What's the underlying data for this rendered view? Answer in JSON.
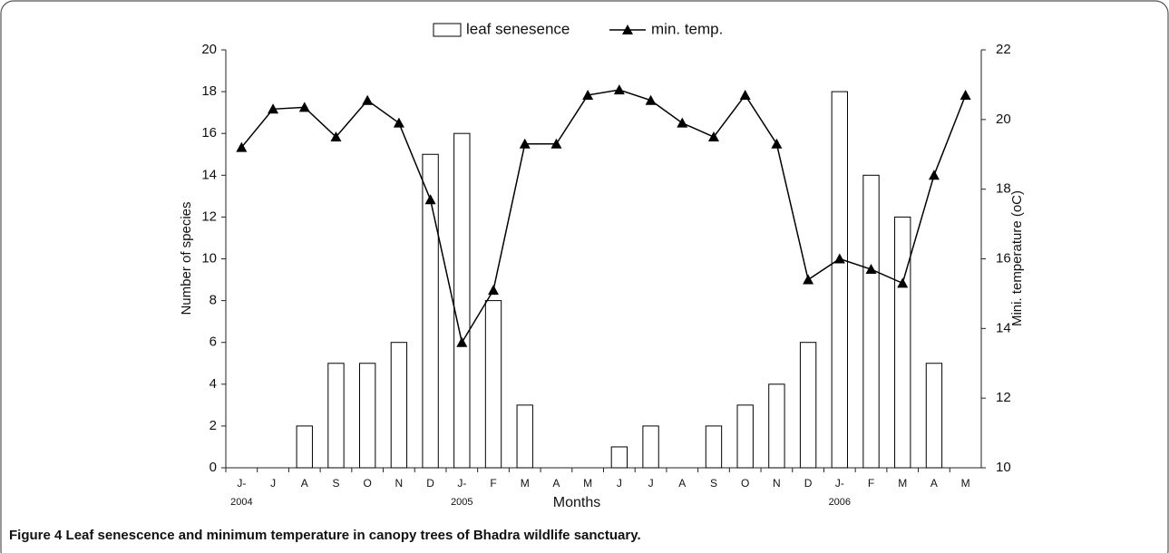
{
  "chart_data": {
    "type": "bar_line",
    "legend": "top",
    "xlabel": "Months",
    "ylabel": "Number of species",
    "y2label": "Mini. temperature (oC)",
    "categories": [
      "J-",
      "J",
      "A",
      "S",
      "O",
      "N",
      "D",
      "J-",
      "F",
      "M",
      "A",
      "M",
      "J",
      "J",
      "A",
      "S",
      "O",
      "N",
      "D",
      "J-",
      "F",
      "M",
      "A",
      "M"
    ],
    "year_labels": [
      "2004",
      null,
      null,
      null,
      null,
      null,
      null,
      "2005",
      null,
      null,
      null,
      null,
      null,
      null,
      null,
      null,
      null,
      null,
      null,
      "2006",
      null,
      null,
      null,
      null
    ],
    "series": [
      {
        "name": "leaf senesence",
        "color": "#ffffff",
        "type": "bar",
        "values": [
          0,
          0,
          2,
          5,
          5,
          6,
          15,
          16,
          8,
          3,
          0,
          0,
          1,
          2,
          0,
          2,
          3,
          4,
          6,
          18,
          14,
          12,
          5,
          0
        ]
      },
      {
        "name": "min. temp.",
        "color": "#000000",
        "type": "line",
        "axis": "y2",
        "values": [
          19.2,
          20.3,
          20.35,
          19.5,
          20.55,
          19.9,
          17.7,
          13.6,
          15.1,
          19.3,
          19.3,
          20.7,
          20.85,
          20.55,
          19.9,
          19.5,
          20.7,
          19.3,
          15.4,
          16.0,
          15.7,
          15.3,
          18.4,
          20.7
        ]
      }
    ],
    "ylim": [
      0,
      20
    ],
    "yticks": [
      0,
      2,
      4,
      6,
      8,
      10,
      12,
      14,
      16,
      18,
      20
    ],
    "y2lim": [
      10,
      22
    ],
    "y2ticks": [
      10,
      12,
      14,
      16,
      18,
      20,
      22
    ],
    "grid": false
  },
  "caption": {
    "label": "Figure 4",
    "text": "Leaf senescence and minimum temperature in canopy trees of Bhadra wildlife sanctuary."
  }
}
